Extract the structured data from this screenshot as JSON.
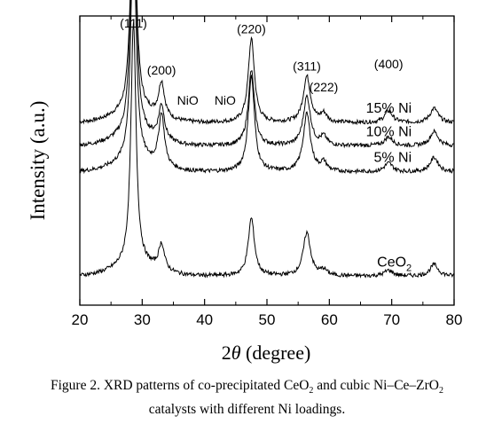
{
  "chart_data": {
    "type": "line",
    "xlabel_prefix": "2",
    "xlabel_symbol": "θ",
    "xlabel_suffix": " (degree)",
    "ylabel": "Intensity (a.u.)",
    "xlim": [
      20,
      80
    ],
    "x_ticks": [
      "20",
      "30",
      "40",
      "50",
      "60",
      "70",
      "80"
    ],
    "y_ticks_labeled": false,
    "grid": false,
    "legend": "none (series labelled inline to the right of each trace)",
    "peak_labels": [
      {
        "text": "(111)",
        "x": 28.6
      },
      {
        "text": "(200)",
        "x": 33.1
      },
      {
        "text": "NiO",
        "x": 37.3
      },
      {
        "text": "NiO",
        "x": 43.3
      },
      {
        "text": "(220)",
        "x": 47.5
      },
      {
        "text": "(311)",
        "x": 56.4
      },
      {
        "text": "(222)",
        "x": 59.1
      },
      {
        "text": "(400)",
        "x": 69.5
      }
    ],
    "series": [
      {
        "name": "15% Ni",
        "label_main": "15% Ni",
        "label_sub": "",
        "baseline": 0.63,
        "peaks": [
          [
            28.6,
            0.86,
            0.5
          ],
          [
            33.1,
            0.12,
            0.55
          ],
          [
            47.5,
            0.29,
            0.6
          ],
          [
            56.4,
            0.16,
            0.7
          ],
          [
            59.1,
            0.03,
            0.6
          ],
          [
            69.5,
            0.04,
            0.8
          ],
          [
            76.8,
            0.05,
            0.8
          ]
        ]
      },
      {
        "name": "10% Ni",
        "label_main": "10% Ni",
        "label_sub": "",
        "baseline": 0.55,
        "peaks": [
          [
            28.6,
            0.91,
            0.5
          ],
          [
            33.1,
            0.12,
            0.55
          ],
          [
            47.5,
            0.26,
            0.6
          ],
          [
            56.4,
            0.17,
            0.7
          ],
          [
            59.1,
            0.03,
            0.6
          ],
          [
            69.5,
            0.03,
            0.8
          ],
          [
            76.8,
            0.05,
            0.8
          ]
        ]
      },
      {
        "name": "5% Ni",
        "label_main": "5% Ni",
        "label_sub": "",
        "baseline": 0.46,
        "peaks": [
          [
            28.6,
            0.81,
            0.5
          ],
          [
            33.1,
            0.18,
            0.55
          ],
          [
            47.5,
            0.33,
            0.6
          ],
          [
            56.4,
            0.2,
            0.7
          ],
          [
            59.1,
            0.03,
            0.6
          ],
          [
            69.5,
            0.03,
            0.8
          ],
          [
            76.8,
            0.05,
            0.8
          ]
        ]
      },
      {
        "name": "CeO2",
        "label_main": "CeO",
        "label_sub": "2",
        "baseline": 0.1,
        "peaks": [
          [
            28.6,
            0.84,
            0.5
          ],
          [
            33.1,
            0.09,
            0.55
          ],
          [
            47.5,
            0.2,
            0.6
          ],
          [
            56.4,
            0.15,
            0.7
          ],
          [
            59.1,
            0.02,
            0.6
          ],
          [
            69.5,
            0.02,
            0.8
          ],
          [
            76.8,
            0.04,
            0.8
          ]
        ]
      }
    ]
  },
  "caption": {
    "line1_prefix": "Figure 2.  XRD patterns of co-precipitated CeO",
    "line1_sub1": "2",
    "line1_mid": " and cubic Ni–Ce–ZrO",
    "line1_sub2": "2",
    "line2": "catalysts with different Ni loadings."
  }
}
